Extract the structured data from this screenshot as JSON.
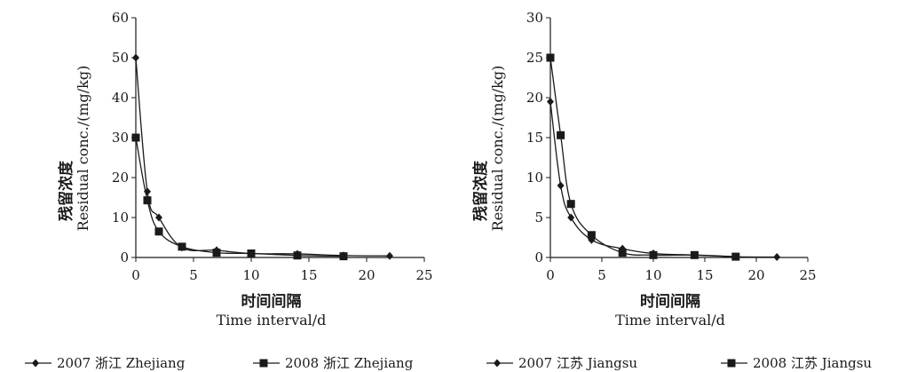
{
  "chart_data": [
    {
      "type": "line",
      "xlabel_cn": "时间间隔",
      "xlabel": "Time interval/d",
      "ylabel_cn": "残留浓度",
      "ylabel": "Residual conc./(mg/kg)",
      "xlim": [
        0,
        25
      ],
      "ylim": [
        0,
        60
      ],
      "xticks": [
        0,
        5,
        10,
        15,
        20,
        25
      ],
      "yticks": [
        0,
        10,
        20,
        30,
        40,
        50,
        60
      ],
      "grid": false,
      "series": [
        {
          "name": "2007 浙江  Zhejiang",
          "marker": "diamond",
          "x": [
            0,
            1,
            2,
            4,
            7,
            10,
            14,
            18,
            22
          ],
          "y": [
            50,
            16.5,
            10,
            2.5,
            1.8,
            1.0,
            0.9,
            0.5,
            0.4
          ]
        },
        {
          "name": "2008 浙江  Zhejiang",
          "marker": "square",
          "x": [
            0,
            1,
            2,
            4,
            7,
            10,
            14,
            18
          ],
          "y": [
            30,
            14.3,
            6.5,
            2.7,
            1.2,
            1.0,
            0.5,
            0.3
          ]
        }
      ]
    },
    {
      "type": "line",
      "xlabel_cn": "时间间隔",
      "xlabel": "Time interval/d",
      "ylabel_cn": "残留浓度",
      "ylabel": "Residual conc./(mg/kg)",
      "xlim": [
        0,
        25
      ],
      "ylim": [
        0,
        30
      ],
      "xticks": [
        0,
        5,
        10,
        15,
        20,
        25
      ],
      "yticks": [
        0,
        5,
        10,
        15,
        20,
        25,
        30
      ],
      "grid": false,
      "series": [
        {
          "name": "2007 江苏  Jiangsu",
          "marker": "diamond",
          "x": [
            0,
            1,
            2,
            4,
            7,
            10,
            14,
            18,
            22
          ],
          "y": [
            19.5,
            9.0,
            5.0,
            2.2,
            1.1,
            0.5,
            0.3,
            0.1,
            0.05
          ]
        },
        {
          "name": "2008 江苏  Jiangsu",
          "marker": "square",
          "x": [
            0,
            1,
            2,
            4,
            7,
            10,
            14,
            18
          ],
          "y": [
            25,
            15.3,
            6.7,
            2.8,
            0.6,
            0.3,
            0.3,
            0.1
          ]
        }
      ]
    }
  ],
  "legend": [
    {
      "label": "2007 浙江  Zhejiang",
      "marker": "diamond"
    },
    {
      "label": "2008 浙江  Zhejiang",
      "marker": "square"
    },
    {
      "label": "2007 江苏  Jiangsu",
      "marker": "diamond"
    },
    {
      "label": "2008 江苏  Jiangsu",
      "marker": "square"
    }
  ],
  "colors": {
    "ink": "#1a1a1a",
    "background": "#ffffff"
  }
}
